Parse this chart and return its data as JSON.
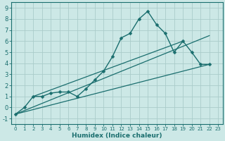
{
  "background_color": "#cce8e6",
  "grid_color": "#aaccca",
  "line_color": "#1a6e6e",
  "xlabel": "Humidex (Indice chaleur)",
  "xlim": [
    -0.5,
    23.5
  ],
  "ylim": [
    -1.5,
    9.5
  ],
  "yticks": [
    -1,
    0,
    1,
    2,
    3,
    4,
    5,
    6,
    7,
    8,
    9
  ],
  "xticks": [
    0,
    1,
    2,
    3,
    4,
    5,
    6,
    7,
    8,
    9,
    10,
    11,
    12,
    13,
    14,
    15,
    16,
    17,
    18,
    19,
    20,
    21,
    22,
    23
  ],
  "main_series": {
    "x": [
      0,
      1,
      2,
      3,
      4,
      5,
      6,
      7,
      8,
      9,
      10,
      11,
      12,
      13,
      14,
      15,
      16,
      17,
      18,
      19,
      20,
      21,
      22
    ],
    "y": [
      -0.6,
      0.0,
      1.0,
      1.0,
      1.3,
      1.4,
      1.4,
      1.0,
      1.7,
      2.5,
      3.3,
      4.6,
      6.3,
      6.7,
      8.0,
      8.7,
      7.5,
      6.7,
      5.0,
      6.0,
      5.0,
      3.9,
      3.9
    ]
  },
  "trend1": {
    "x": [
      0,
      22
    ],
    "y": [
      -0.6,
      3.9
    ]
  },
  "trend2": {
    "x": [
      2,
      19
    ],
    "y": [
      1.0,
      6.0
    ]
  },
  "trend3": {
    "x": [
      0,
      22
    ],
    "y": [
      -0.6,
      6.5
    ]
  }
}
